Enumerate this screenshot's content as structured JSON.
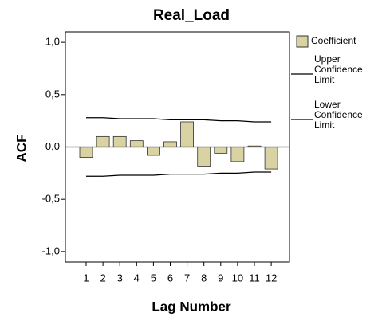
{
  "chart_data": {
    "type": "bar",
    "title": "Real_Load",
    "x_label": "Lag Number",
    "y_label": "ACF",
    "categories": [
      "1",
      "2",
      "3",
      "4",
      "5",
      "6",
      "7",
      "8",
      "9",
      "10",
      "11",
      "12"
    ],
    "series": [
      {
        "name": "Coefficient",
        "type": "bar",
        "color": "#d9d3a3",
        "values": [
          -0.1,
          0.1,
          0.1,
          0.06,
          -0.08,
          0.05,
          0.24,
          -0.19,
          -0.06,
          -0.14,
          0.01,
          -0.21
        ]
      },
      {
        "name": "Upper Confidence Limit",
        "type": "line",
        "color": "#000000",
        "values": [
          0.28,
          0.28,
          0.27,
          0.27,
          0.27,
          0.26,
          0.26,
          0.26,
          0.25,
          0.25,
          0.24,
          0.24
        ]
      },
      {
        "name": "Lower Confidence Limit",
        "type": "line",
        "color": "#000000",
        "values": [
          -0.28,
          -0.28,
          -0.27,
          -0.27,
          -0.27,
          -0.26,
          -0.26,
          -0.26,
          -0.25,
          -0.25,
          -0.24,
          -0.24
        ]
      }
    ],
    "ylim": [
      -1.1,
      1.1
    ],
    "yticks": [
      {
        "value": 1,
        "label": "1,0"
      },
      {
        "value": 0.5,
        "label": "0,5"
      },
      {
        "value": 0,
        "label": "0,0"
      },
      {
        "value": -0.5,
        "label": "-0,5"
      },
      {
        "value": -1,
        "label": "-1,0"
      }
    ]
  }
}
